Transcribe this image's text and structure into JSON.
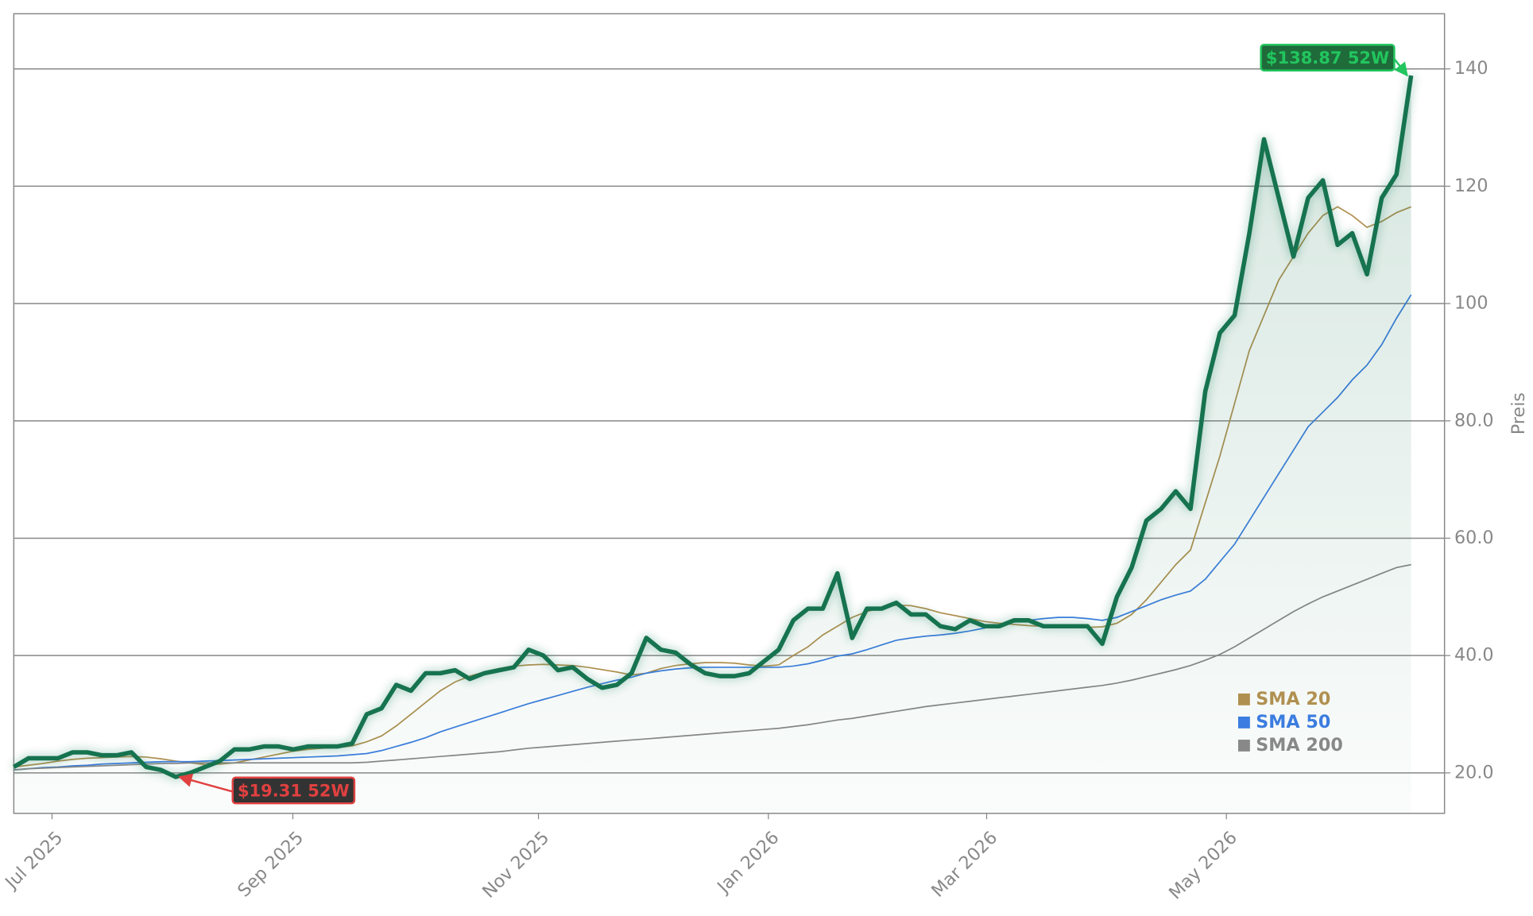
{
  "chart_data": {
    "type": "line",
    "y_label": "Preis",
    "xlim": [
      0,
      97.27
    ],
    "xticks": [
      {
        "value": 2.6,
        "label": "Jul 2025"
      },
      {
        "value": 18.97,
        "label": "Sep 2025"
      },
      {
        "value": 35.67,
        "label": "Nov 2025"
      },
      {
        "value": 51.3,
        "label": "Jan 2026"
      },
      {
        "value": 66.14,
        "label": "Mar 2026"
      },
      {
        "value": 82.44,
        "label": "May 2026"
      }
    ],
    "ylim": [
      13.1,
      149.4
    ],
    "yticks": [
      {
        "value": 20,
        "label": "20.0"
      },
      {
        "value": 40,
        "label": "40.0"
      },
      {
        "value": 60,
        "label": "60.0"
      },
      {
        "value": 80,
        "label": "80.0"
      },
      100,
      120,
      140
    ],
    "grid": true,
    "legend": "lower right",
    "series": [
      {
        "name": null,
        "color": "#17734f",
        "fill": true,
        "values": [
          21,
          22.5,
          22.5,
          22.5,
          23.5,
          23.5,
          23,
          23,
          23.5,
          21,
          20.5,
          19.31,
          20,
          21,
          22,
          24,
          24,
          24.5,
          24.5,
          24,
          24.5,
          24.5,
          24.5,
          25,
          30,
          31,
          35,
          34,
          37,
          37,
          37.5,
          36,
          37,
          37.5,
          38,
          41,
          40,
          37.5,
          38,
          36,
          34.5,
          35,
          37,
          43,
          41,
          40.5,
          38.5,
          37,
          36.5,
          36.5,
          37,
          39,
          41,
          46,
          48,
          48,
          54,
          43,
          48,
          48,
          49,
          47,
          47,
          45,
          44.5,
          46,
          45,
          45,
          46,
          46,
          45,
          45,
          45,
          45,
          42,
          50,
          55,
          63,
          65,
          68,
          65,
          85,
          95,
          98,
          112,
          128,
          118,
          108,
          118,
          121,
          110,
          112,
          105,
          118,
          122,
          138.87
        ]
      },
      {
        "name": "SMA 20",
        "color": "#b09050",
        "values": [
          21,
          21.3,
          21.6,
          22,
          22.3,
          22.5,
          22.6,
          22.7,
          22.8,
          22.7,
          22.4,
          22,
          21.7,
          21.4,
          21.5,
          21.7,
          22.2,
          22.7,
          23.2,
          23.7,
          24,
          24.2,
          24.3,
          24.6,
          25.3,
          26.3,
          28,
          30,
          32,
          34,
          35.5,
          36.5,
          37.2,
          37.8,
          38.2,
          38.4,
          38.5,
          38.4,
          38.3,
          38,
          37.6,
          37.2,
          36.7,
          37,
          37.8,
          38.3,
          38.6,
          38.8,
          38.8,
          38.7,
          38.4,
          38.2,
          38.4,
          40,
          41.5,
          43.5,
          45,
          46.5,
          47.5,
          48.2,
          48.6,
          48.5,
          48,
          47.3,
          46.8,
          46.3,
          45.8,
          45.5,
          45.3,
          45.1,
          45,
          45,
          45,
          44.8,
          44.9,
          45.5,
          47,
          49.5,
          52.5,
          55.5,
          58,
          66,
          74,
          83,
          92,
          98,
          104,
          108,
          112,
          115,
          116.5,
          115,
          113,
          114,
          115.5,
          116.5
        ]
      },
      {
        "name": "SMA 50",
        "color": "#3b7de0",
        "values": [
          20.5,
          20.7,
          20.9,
          21,
          21.2,
          21.3,
          21.5,
          21.6,
          21.7,
          21.8,
          21.9,
          21.9,
          21.9,
          22,
          22.1,
          22.2,
          22.3,
          22.4,
          22.5,
          22.6,
          22.7,
          22.8,
          22.9,
          23.1,
          23.3,
          23.8,
          24.5,
          25.2,
          26,
          27,
          27.8,
          28.6,
          29.4,
          30.2,
          31,
          31.8,
          32.5,
          33.2,
          33.9,
          34.6,
          35.2,
          35.8,
          36.3,
          37,
          37.4,
          37.7,
          37.9,
          38,
          38,
          38,
          38,
          38,
          38,
          38.2,
          38.6,
          39.2,
          39.9,
          40.3,
          41,
          41.8,
          42.6,
          43,
          43.3,
          43.5,
          43.8,
          44.2,
          44.7,
          45.2,
          45.7,
          46,
          46.3,
          46.5,
          46.5,
          46.3,
          46,
          46.5,
          47.5,
          48.5,
          49.5,
          50.3,
          51,
          53,
          56,
          59,
          63,
          67,
          71,
          75,
          79,
          81.5,
          84,
          87,
          89.5,
          93,
          97.5,
          101.5
        ]
      },
      {
        "name": "SMA 200",
        "color": "#888888",
        "values": [
          20.5,
          20.7,
          20.8,
          20.9,
          21,
          21.1,
          21.2,
          21.3,
          21.4,
          21.5,
          21.6,
          21.6,
          21.7,
          21.7,
          21.7,
          21.7,
          21.7,
          21.7,
          21.7,
          21.7,
          21.7,
          21.7,
          21.7,
          21.7,
          21.8,
          22,
          22.2,
          22.4,
          22.6,
          22.8,
          23,
          23.2,
          23.4,
          23.6,
          23.9,
          24.2,
          24.4,
          24.6,
          24.8,
          25,
          25.2,
          25.4,
          25.6,
          25.8,
          26,
          26.2,
          26.4,
          26.6,
          26.8,
          27,
          27.2,
          27.4,
          27.6,
          27.9,
          28.2,
          28.6,
          29,
          29.3,
          29.7,
          30.1,
          30.5,
          30.9,
          31.3,
          31.6,
          31.9,
          32.2,
          32.5,
          32.8,
          33.1,
          33.4,
          33.7,
          34,
          34.3,
          34.6,
          34.9,
          35.3,
          35.8,
          36.4,
          37,
          37.6,
          38.3,
          39.2,
          40.2,
          41.5,
          43,
          44.5,
          46,
          47.5,
          48.8,
          50,
          51,
          52,
          53,
          54,
          55,
          55.5
        ]
      }
    ],
    "annotations": [
      {
        "text": "$138.87 52W",
        "value": 138.87,
        "color": "#22c55e",
        "box": "#1f6b3a"
      },
      {
        "text": "$19.31 52W",
        "value": 19.31,
        "color": "#e04040",
        "box": "#333333"
      }
    ]
  }
}
